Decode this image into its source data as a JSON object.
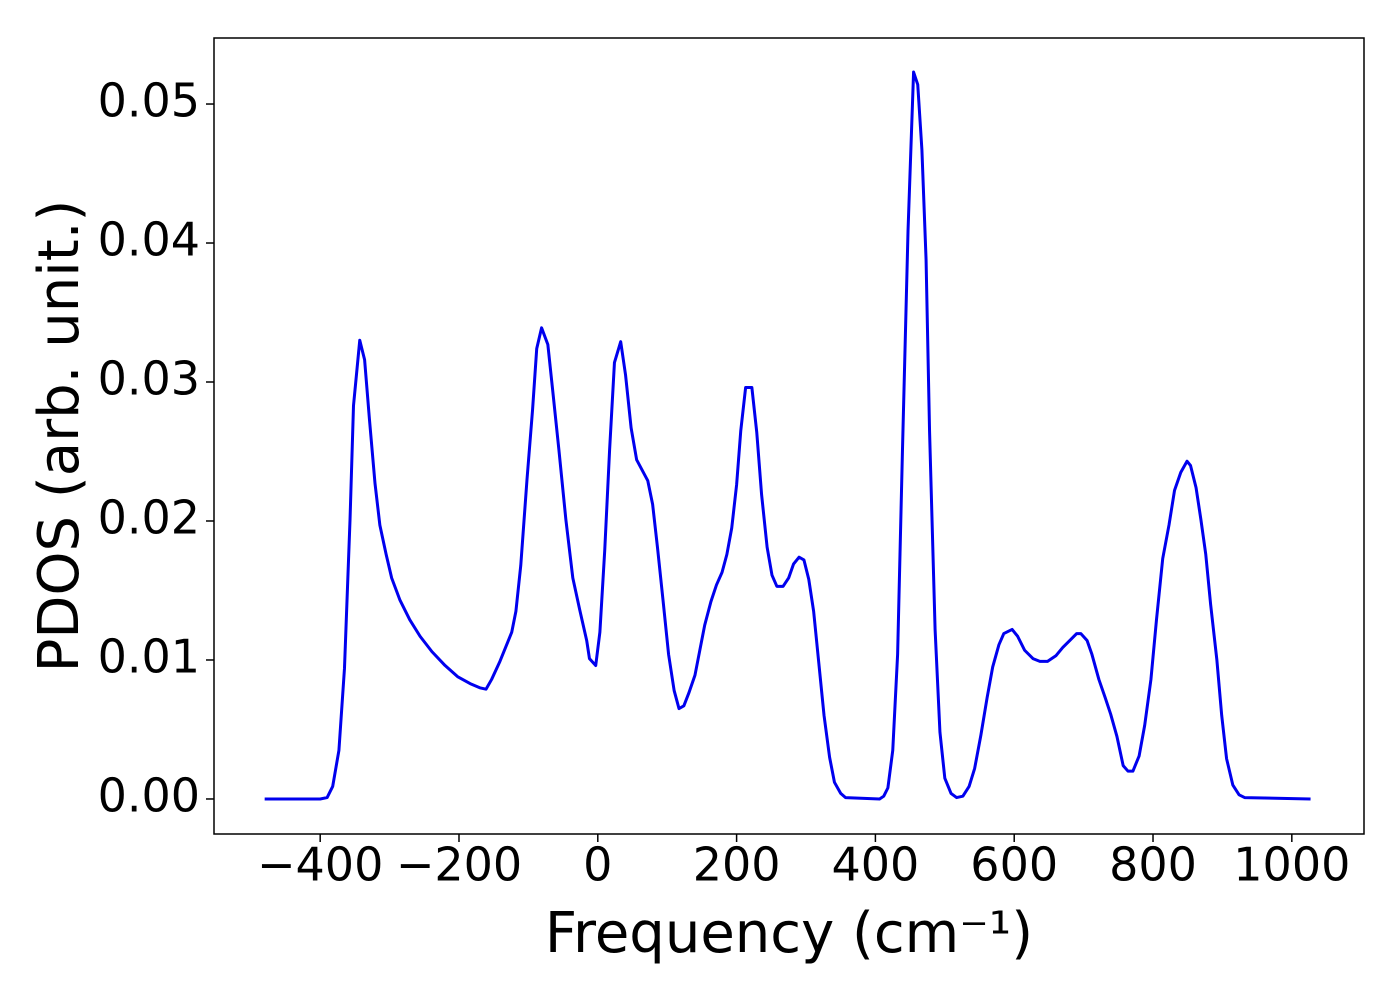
{
  "chart_data": {
    "type": "line",
    "xlabel": "Frequency (cm⁻¹)",
    "ylabel": "PDOS (arb. unit.)",
    "xlim": [
      -553,
      1104
    ],
    "ylim": [
      -0.00252,
      0.05475
    ],
    "xticks": [
      {
        "value": -400,
        "label": "−400"
      },
      {
        "value": -200,
        "label": "−200"
      },
      0,
      200,
      400,
      600,
      800,
      1000
    ],
    "yticks": [
      {
        "value": 0,
        "label": "0.00"
      },
      0.01,
      0.02,
      0.03,
      0.04,
      0.05
    ],
    "color": "#0000ee",
    "x": [
      -480,
      -400,
      -390,
      -382,
      -373,
      -365,
      -357,
      -352,
      -343,
      -336,
      -329,
      -321,
      -314,
      -305,
      -297,
      -285,
      -271,
      -256,
      -239,
      -220,
      -202,
      -184,
      -170,
      -161,
      -153,
      -141,
      -124,
      -118,
      -111,
      -102,
      -94,
      -88,
      -81,
      -72,
      -65,
      -56,
      -46,
      -36,
      -26,
      -16,
      -12,
      -3,
      3,
      10,
      17,
      24,
      33,
      40,
      48,
      56,
      72,
      79,
      86,
      94,
      102,
      110,
      117,
      124,
      131,
      140,
      147,
      154,
      163,
      171,
      179,
      186,
      193,
      200,
      206,
      213,
      222,
      229,
      236,
      244,
      251,
      258,
      267,
      275,
      282,
      290,
      297,
      304,
      311,
      318,
      326,
      334,
      341,
      350,
      357,
      406,
      412,
      418,
      425,
      432,
      439,
      447,
      455,
      461,
      467,
      473,
      478,
      486,
      493,
      500,
      509,
      517,
      526,
      535,
      543,
      552,
      561,
      569,
      578,
      585,
      597,
      605,
      615,
      627,
      637,
      648,
      660,
      670,
      680,
      690,
      696,
      705,
      712,
      722,
      731,
      739,
      748,
      757,
      764,
      771,
      780,
      788,
      797,
      805,
      814,
      823,
      831,
      840,
      849,
      854,
      862,
      869,
      876,
      883,
      892,
      899,
      906,
      915,
      924,
      932,
      1027
    ],
    "values": [
      0,
      0,
      0.0001,
      0.0009,
      0.0035,
      0.0094,
      0.0201,
      0.0283,
      0.033,
      0.0316,
      0.0273,
      0.0227,
      0.0197,
      0.0176,
      0.0159,
      0.0143,
      0.0129,
      0.0117,
      0.0106,
      0.0096,
      0.0088,
      0.0083,
      0.008,
      0.0079,
      0.0086,
      0.0099,
      0.012,
      0.0135,
      0.0168,
      0.023,
      0.028,
      0.0324,
      0.0339,
      0.0327,
      0.0294,
      0.0251,
      0.0201,
      0.0159,
      0.0136,
      0.0114,
      0.0101,
      0.0096,
      0.012,
      0.0179,
      0.0251,
      0.0314,
      0.0329,
      0.0305,
      0.0267,
      0.0244,
      0.0229,
      0.0212,
      0.0181,
      0.0143,
      0.0104,
      0.0078,
      0.0065,
      0.0067,
      0.0076,
      0.0089,
      0.0107,
      0.0125,
      0.0142,
      0.0154,
      0.0163,
      0.0176,
      0.0195,
      0.0226,
      0.0265,
      0.0296,
      0.0296,
      0.0264,
      0.0219,
      0.0181,
      0.0161,
      0.0153,
      0.0153,
      0.0159,
      0.0169,
      0.0174,
      0.0172,
      0.0158,
      0.0135,
      0.01,
      0.006,
      0.003,
      0.0012,
      0.0004,
      0.0001,
      0,
      0.0002,
      0.0008,
      0.0035,
      0.0104,
      0.0251,
      0.0409,
      0.0523,
      0.0514,
      0.0467,
      0.0388,
      0.0265,
      0.0122,
      0.0048,
      0.0015,
      0.0004,
      0.0001,
      0.0002,
      0.0009,
      0.0022,
      0.0046,
      0.0073,
      0.0095,
      0.0111,
      0.0119,
      0.0122,
      0.0117,
      0.0107,
      0.0101,
      0.0099,
      0.0099,
      0.0103,
      0.0109,
      0.0114,
      0.0119,
      0.0119,
      0.0114,
      0.0104,
      0.0086,
      0.0073,
      0.0061,
      0.0045,
      0.0024,
      0.002,
      0.002,
      0.0031,
      0.0053,
      0.0086,
      0.0129,
      0.0173,
      0.0197,
      0.0222,
      0.0235,
      0.0243,
      0.024,
      0.0224,
      0.0201,
      0.0176,
      0.014,
      0.01,
      0.006,
      0.0029,
      0.001,
      0.0003,
      0.0001,
      0
    ]
  }
}
